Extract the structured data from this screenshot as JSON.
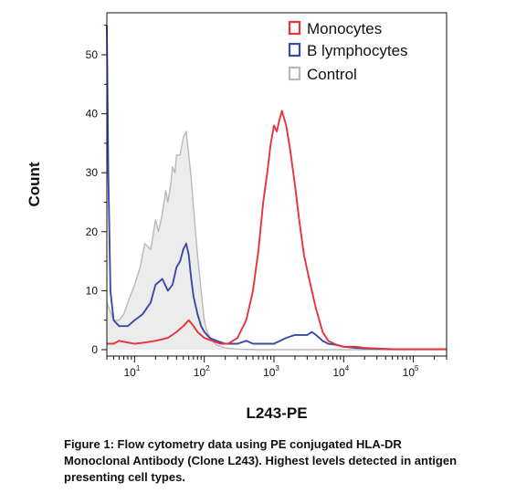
{
  "chart_data": {
    "type": "line",
    "title": "",
    "xlabel": "L243-PE",
    "ylabel": "Count",
    "x_scale": "log",
    "xlim": [
      4,
      300000
    ],
    "ylim": [
      0,
      55
    ],
    "y_ticks": [
      0,
      10,
      20,
      30,
      40,
      50
    ],
    "x_tick_labels": [
      {
        "value": 10,
        "base": "10",
        "exp": "1"
      },
      {
        "value": 100,
        "base": "10",
        "exp": "2"
      },
      {
        "value": 1000,
        "base": "10",
        "exp": "3"
      },
      {
        "value": 10000,
        "base": "10",
        "exp": "4"
      },
      {
        "value": 100000,
        "base": "10",
        "exp": "5"
      }
    ],
    "grid": false,
    "legend_position": "top-right",
    "series": [
      {
        "name": "Monocytes",
        "color": "#e8323c",
        "fill": false,
        "x": [
          4,
          5,
          6,
          8,
          10,
          14,
          20,
          30,
          40,
          50,
          60,
          70,
          80,
          100,
          130,
          170,
          220,
          300,
          400,
          500,
          600,
          700,
          800,
          900,
          1000,
          1100,
          1200,
          1300,
          1500,
          1700,
          2000,
          2300,
          2700,
          3200,
          4000,
          5000,
          6000,
          8000,
          10000,
          15000,
          20000,
          30000,
          50000,
          100000,
          300000
        ],
        "y": [
          1,
          1,
          1.5,
          1.2,
          1,
          1.2,
          1.5,
          2,
          3,
          4,
          5,
          4,
          3,
          2,
          1.5,
          1,
          1,
          2,
          5,
          10,
          17,
          25,
          30,
          35,
          38,
          37,
          39,
          40.5,
          38,
          34,
          28,
          22,
          16,
          12,
          7,
          3,
          1.5,
          0.8,
          0.5,
          0.5,
          0.3,
          0.2,
          0.1,
          0.1,
          0.1
        ]
      },
      {
        "name": "B lymphocytes",
        "color": "#3a4aa8",
        "fill": false,
        "x": [
          4,
          4.2,
          4.5,
          5,
          6,
          8,
          10,
          13,
          17,
          20,
          25,
          30,
          35,
          40,
          45,
          50,
          55,
          60,
          65,
          70,
          80,
          90,
          100,
          120,
          150,
          200,
          300,
          400,
          500,
          700,
          1000,
          1500,
          2000,
          2500,
          3000,
          3500,
          4000,
          5000,
          6000,
          8000,
          10000,
          15000,
          20000,
          50000,
          300000
        ],
        "y": [
          55,
          30,
          10,
          5,
          4,
          4,
          5,
          6,
          8,
          11,
          12,
          10,
          11,
          14,
          15,
          17,
          18,
          16,
          12,
          9,
          6,
          4,
          3,
          2,
          1.5,
          1,
          1,
          1.5,
          1,
          1,
          1,
          2,
          2.5,
          2.5,
          2.5,
          3,
          2.5,
          1.5,
          1,
          0.8,
          0.5,
          0.3,
          0.2,
          0.1,
          0.1
        ]
      },
      {
        "name": "Control",
        "color": "#b9b9b9",
        "fill": true,
        "fill_color": "#ececec",
        "x": [
          4,
          5,
          6,
          7,
          8,
          10,
          12,
          14,
          17,
          20,
          22,
          25,
          28,
          30,
          33,
          35,
          38,
          40,
          45,
          50,
          55,
          60,
          65,
          70,
          80,
          90,
          100,
          110,
          130,
          150,
          200,
          300,
          500,
          1000,
          300000
        ],
        "y": [
          8,
          5,
          5,
          6,
          8,
          11,
          14,
          18,
          17,
          22,
          20,
          23,
          27,
          25,
          28,
          31,
          30,
          33,
          33,
          36,
          37,
          33,
          29,
          24,
          16,
          10,
          5,
          3,
          1.5,
          0.8,
          0.3,
          0.1,
          0,
          0,
          0
        ]
      }
    ]
  },
  "caption": "Figure 1: Flow cytometry data using PE conjugated HLA-DR Monoclonal Antibody (Clone L243). Highest levels detected in antigen presenting cell types."
}
